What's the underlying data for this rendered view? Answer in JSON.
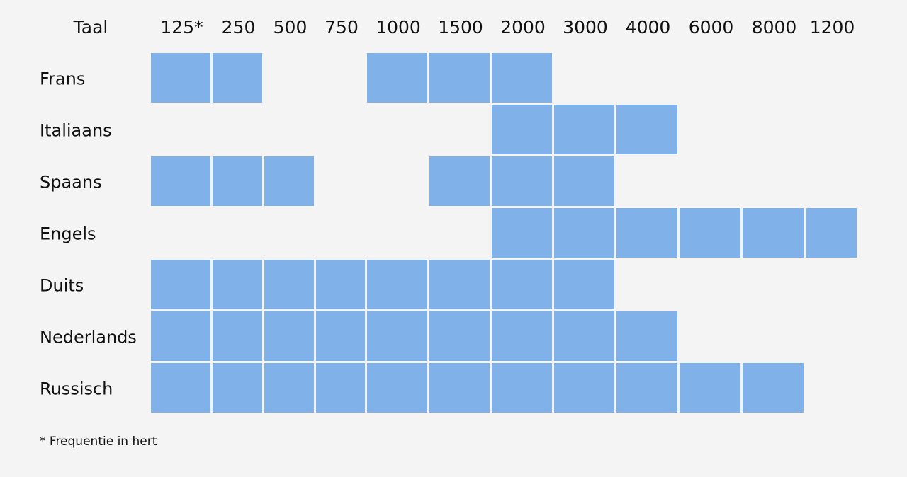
{
  "chart_data": {
    "type": "heatmap",
    "corner_label": "Taal",
    "columns": [
      "125*",
      "250",
      "500",
      "750",
      "1000",
      "1500",
      "2000",
      "3000",
      "4000",
      "6000",
      "8000",
      "1200"
    ],
    "rows": [
      {
        "label": "Frans",
        "cells": [
          1,
          1,
          0,
          0,
          1,
          1,
          1,
          0,
          0,
          0,
          0,
          0
        ]
      },
      {
        "label": "Italiaans",
        "cells": [
          0,
          0,
          0,
          0,
          0,
          0,
          1,
          1,
          1,
          0,
          0,
          0
        ]
      },
      {
        "label": "Spaans",
        "cells": [
          1,
          1,
          1,
          0,
          0,
          1,
          1,
          1,
          0,
          0,
          0,
          0
        ]
      },
      {
        "label": "Engels",
        "cells": [
          0,
          0,
          0,
          0,
          0,
          0,
          1,
          1,
          1,
          1,
          1,
          1
        ]
      },
      {
        "label": "Duits",
        "cells": [
          1,
          1,
          1,
          1,
          1,
          1,
          1,
          1,
          0,
          0,
          0,
          0
        ]
      },
      {
        "label": "Nederlands",
        "cells": [
          1,
          1,
          1,
          1,
          1,
          1,
          1,
          1,
          1,
          0,
          0,
          0
        ]
      },
      {
        "label": "Russisch",
        "cells": [
          1,
          1,
          1,
          1,
          1,
          1,
          1,
          1,
          1,
          1,
          1,
          0
        ]
      }
    ],
    "footnote": "* Frequentie in hert",
    "fill_color": "#80b1e9",
    "gap_color": "#ffffff",
    "background_color": "#f4f4f4"
  }
}
